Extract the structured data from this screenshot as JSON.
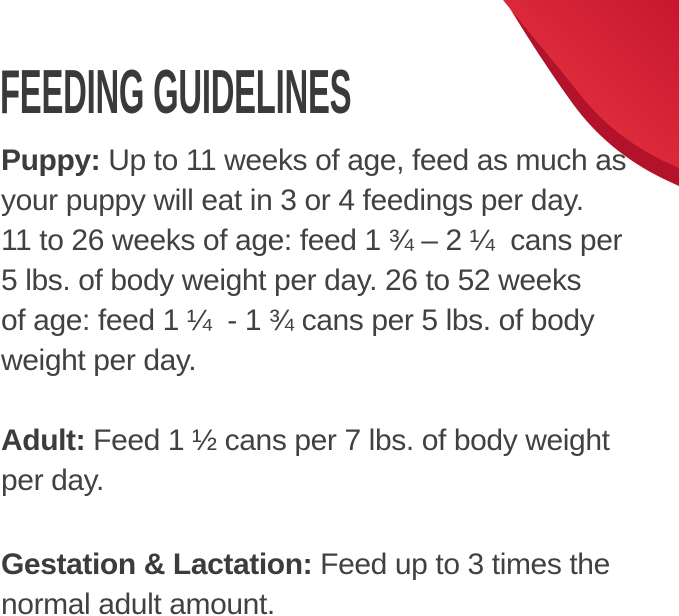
{
  "title": "FEEDING GUIDELINES",
  "sections": [
    {
      "label": "Puppy:",
      "lines": [
        " Up to 11 weeks of age, feed as much as",
        "your puppy will eat in 3 or 4 feedings per day.",
        "11 to 26 weeks of age: feed 1 ¾ – 2 ¼  cans per",
        "5 lbs. of body weight per day. 26 to 52 weeks",
        "of age: feed 1 ¼  - 1 ¾ cans per 5 lbs. of body",
        "weight per day."
      ]
    },
    {
      "label": "Adult:",
      "lines": [
        " Feed 1 ½ cans per 7 lbs. of body weight",
        "per day."
      ]
    },
    {
      "label": "Gestation & Lactation:",
      "lines": [
        " Feed up to 3 times the",
        "normal adult amount."
      ]
    }
  ],
  "decoration": {
    "swoosh_icon": "red-swoosh",
    "color_main_light": "#ee3a45",
    "color_main_dark": "#c6172e",
    "color_fold": "#b2122a"
  },
  "colors": {
    "title": "#3a3a3c",
    "body_text": "#414044",
    "background": "#ffffff"
  }
}
